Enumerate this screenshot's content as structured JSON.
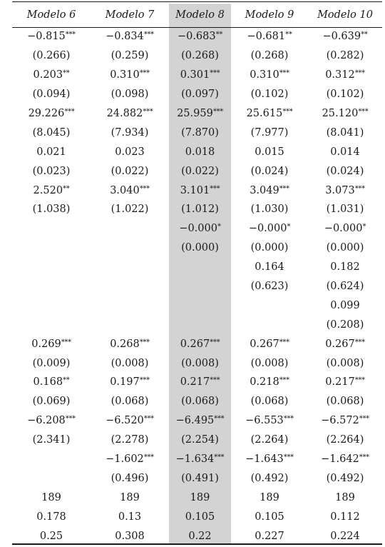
{
  "table": {
    "headers": [
      "Modelo 6",
      "Modelo 7",
      "Modelo 8",
      "Modelo 9",
      "Modelo 10"
    ],
    "rows": [
      [
        {
          "v": "−0.815",
          "s": "***"
        },
        {
          "v": "−0.834",
          "s": "***"
        },
        {
          "v": "−0.683",
          "s": "**"
        },
        {
          "v": "−0.681",
          "s": "**"
        },
        {
          "v": "−0.639",
          "s": "**"
        }
      ],
      [
        {
          "v": "(0.266)",
          "s": ""
        },
        {
          "v": "(0.259)",
          "s": ""
        },
        {
          "v": "(0.268)",
          "s": ""
        },
        {
          "v": "(0.268)",
          "s": ""
        },
        {
          "v": "(0.282)",
          "s": ""
        }
      ],
      [
        {
          "v": "0.203",
          "s": "**"
        },
        {
          "v": "0.310",
          "s": "***"
        },
        {
          "v": "0.301",
          "s": "***"
        },
        {
          "v": "0.310",
          "s": "***"
        },
        {
          "v": "0.312",
          "s": "***"
        }
      ],
      [
        {
          "v": "(0.094)",
          "s": ""
        },
        {
          "v": "(0.098)",
          "s": ""
        },
        {
          "v": "(0.097)",
          "s": ""
        },
        {
          "v": "(0.102)",
          "s": ""
        },
        {
          "v": "(0.102)",
          "s": ""
        }
      ],
      [
        {
          "v": "29.226",
          "s": "***"
        },
        {
          "v": "24.882",
          "s": "***"
        },
        {
          "v": "25.959",
          "s": "***"
        },
        {
          "v": "25.615",
          "s": "***"
        },
        {
          "v": "25.120",
          "s": "***"
        }
      ],
      [
        {
          "v": "(8.045)",
          "s": ""
        },
        {
          "v": "(7.934)",
          "s": ""
        },
        {
          "v": "(7.870)",
          "s": ""
        },
        {
          "v": "(7.977)",
          "s": ""
        },
        {
          "v": "(8.041)",
          "s": ""
        }
      ],
      [
        {
          "v": "0.021",
          "s": ""
        },
        {
          "v": "0.023",
          "s": ""
        },
        {
          "v": "0.018",
          "s": ""
        },
        {
          "v": "0.015",
          "s": ""
        },
        {
          "v": "0.014",
          "s": ""
        }
      ],
      [
        {
          "v": "(0.023)",
          "s": ""
        },
        {
          "v": "(0.022)",
          "s": ""
        },
        {
          "v": "(0.022)",
          "s": ""
        },
        {
          "v": "(0.024)",
          "s": ""
        },
        {
          "v": "(0.024)",
          "s": ""
        }
      ],
      [
        {
          "v": "2.520",
          "s": "**"
        },
        {
          "v": "3.040",
          "s": "***"
        },
        {
          "v": "3.101",
          "s": "***"
        },
        {
          "v": "3.049",
          "s": "***"
        },
        {
          "v": "3.073",
          "s": "***"
        }
      ],
      [
        {
          "v": "(1.038)",
          "s": ""
        },
        {
          "v": "(1.022)",
          "s": ""
        },
        {
          "v": "(1.012)",
          "s": ""
        },
        {
          "v": "(1.030)",
          "s": ""
        },
        {
          "v": "(1.031)",
          "s": ""
        }
      ],
      [
        {
          "v": "",
          "s": ""
        },
        {
          "v": "",
          "s": ""
        },
        {
          "v": "−0.000",
          "s": "*"
        },
        {
          "v": "−0.000",
          "s": "*"
        },
        {
          "v": "−0.000",
          "s": "*"
        }
      ],
      [
        {
          "v": "",
          "s": ""
        },
        {
          "v": "",
          "s": ""
        },
        {
          "v": "(0.000)",
          "s": ""
        },
        {
          "v": "(0.000)",
          "s": ""
        },
        {
          "v": "(0.000)",
          "s": ""
        }
      ],
      [
        {
          "v": "",
          "s": ""
        },
        {
          "v": "",
          "s": ""
        },
        {
          "v": "",
          "s": ""
        },
        {
          "v": "0.164",
          "s": ""
        },
        {
          "v": "0.182",
          "s": ""
        }
      ],
      [
        {
          "v": "",
          "s": ""
        },
        {
          "v": "",
          "s": ""
        },
        {
          "v": "",
          "s": ""
        },
        {
          "v": "(0.623)",
          "s": ""
        },
        {
          "v": "(0.624)",
          "s": ""
        }
      ],
      [
        {
          "v": "",
          "s": ""
        },
        {
          "v": "",
          "s": ""
        },
        {
          "v": "",
          "s": ""
        },
        {
          "v": "",
          "s": ""
        },
        {
          "v": "0.099",
          "s": ""
        }
      ],
      [
        {
          "v": "",
          "s": ""
        },
        {
          "v": "",
          "s": ""
        },
        {
          "v": "",
          "s": ""
        },
        {
          "v": "",
          "s": ""
        },
        {
          "v": "(0.208)",
          "s": ""
        }
      ],
      [
        {
          "v": "0.269",
          "s": "***"
        },
        {
          "v": "0.268",
          "s": "***"
        },
        {
          "v": "0.267",
          "s": "***"
        },
        {
          "v": "0.267",
          "s": "***"
        },
        {
          "v": "0.267",
          "s": "***"
        }
      ],
      [
        {
          "v": "(0.009)",
          "s": ""
        },
        {
          "v": "(0.008)",
          "s": ""
        },
        {
          "v": "(0.008)",
          "s": ""
        },
        {
          "v": "(0.008)",
          "s": ""
        },
        {
          "v": "(0.008)",
          "s": ""
        }
      ],
      [
        {
          "v": "0.168",
          "s": "**"
        },
        {
          "v": "0.197",
          "s": "***"
        },
        {
          "v": "0.217",
          "s": "***"
        },
        {
          "v": "0.218",
          "s": "***"
        },
        {
          "v": "0.217",
          "s": "***"
        }
      ],
      [
        {
          "v": "(0.069)",
          "s": ""
        },
        {
          "v": "(0.068)",
          "s": ""
        },
        {
          "v": "(0.068)",
          "s": ""
        },
        {
          "v": "(0.068)",
          "s": ""
        },
        {
          "v": "(0.068)",
          "s": ""
        }
      ],
      [
        {
          "v": "−6.208",
          "s": "***"
        },
        {
          "v": "−6.520",
          "s": "***"
        },
        {
          "v": "−6.495",
          "s": "***"
        },
        {
          "v": "−6.553",
          "s": "***"
        },
        {
          "v": "−6.572",
          "s": "***"
        }
      ],
      [
        {
          "v": "(2.341)",
          "s": ""
        },
        {
          "v": "(2.278)",
          "s": ""
        },
        {
          "v": "(2.254)",
          "s": ""
        },
        {
          "v": "(2.264)",
          "s": ""
        },
        {
          "v": "(2.264)",
          "s": ""
        }
      ],
      [
        {
          "v": "",
          "s": ""
        },
        {
          "v": "−1.602",
          "s": "***"
        },
        {
          "v": "−1.634",
          "s": "***"
        },
        {
          "v": "−1.643",
          "s": "***"
        },
        {
          "v": "−1.642",
          "s": "***"
        }
      ],
      [
        {
          "v": "",
          "s": ""
        },
        {
          "v": "(0.496)",
          "s": ""
        },
        {
          "v": "(0.491)",
          "s": ""
        },
        {
          "v": "(0.492)",
          "s": ""
        },
        {
          "v": "(0.492)",
          "s": ""
        }
      ],
      [
        {
          "v": "189",
          "s": ""
        },
        {
          "v": "189",
          "s": ""
        },
        {
          "v": "189",
          "s": ""
        },
        {
          "v": "189",
          "s": ""
        },
        {
          "v": "189",
          "s": ""
        }
      ],
      [
        {
          "v": "0.178",
          "s": ""
        },
        {
          "v": "0.13",
          "s": ""
        },
        {
          "v": "0.105",
          "s": ""
        },
        {
          "v": "0.105",
          "s": ""
        },
        {
          "v": "0.112",
          "s": ""
        }
      ],
      [
        {
          "v": "0.25",
          "s": ""
        },
        {
          "v": "0.308",
          "s": ""
        },
        {
          "v": "0.22",
          "s": ""
        },
        {
          "v": "0.227",
          "s": ""
        },
        {
          "v": "0.224",
          "s": ""
        }
      ]
    ],
    "highlight_color": "#d3d3d3",
    "rule_color": "#1a1a1a"
  }
}
